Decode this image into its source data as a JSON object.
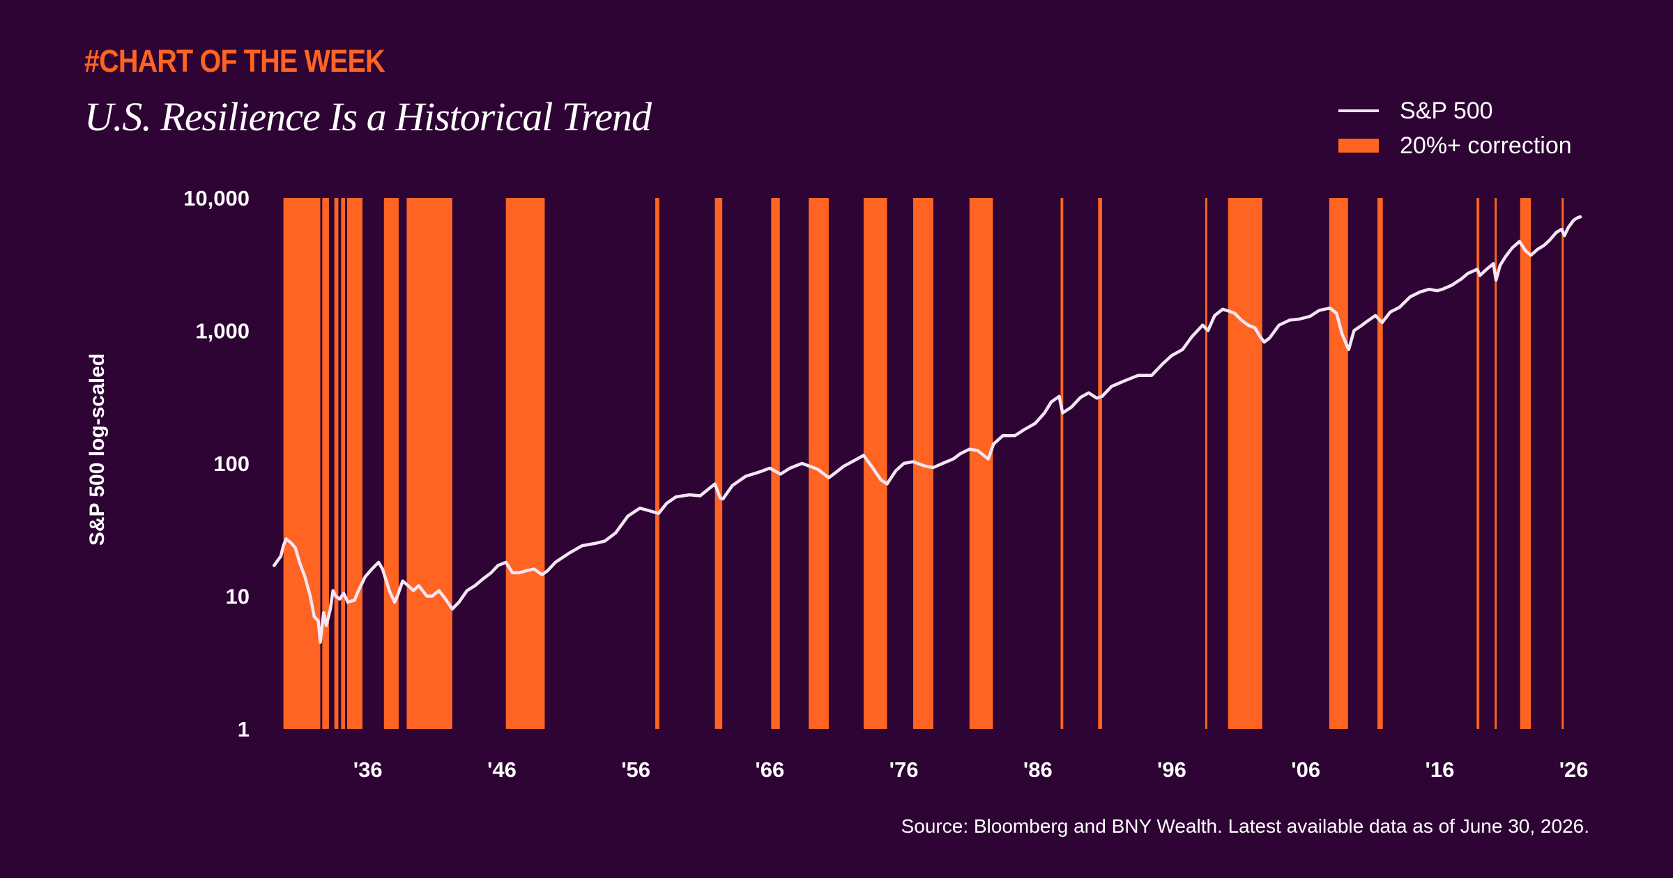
{
  "header": {
    "kicker": "#CHART OF THE WEEK",
    "title": "U.S. Resilience Is a Historical Trend"
  },
  "legend": {
    "line_label": "S&P 500",
    "box_label": "20%+ correction"
  },
  "footer": {
    "source": "Source: Bloomberg and BNY Wealth. Latest available data as of June 30, 2026."
  },
  "colors": {
    "background": "#2d0433",
    "line": "#f4e6f5",
    "correction": "#ff6422",
    "accent": "#ff6422"
  },
  "chart_data": {
    "type": "line",
    "title": "U.S. Resilience Is a Historical Trend",
    "ylabel": "S&P 500 log-scaled",
    "xlabel": "",
    "y_scale": "log",
    "ylim": [
      1,
      10000
    ],
    "xlim": [
      1929.2,
      2026.8
    ],
    "y_ticks": [
      1,
      10,
      100,
      1000,
      10000
    ],
    "y_tick_labels": [
      "1",
      "10",
      "100",
      "1,000",
      "10,000"
    ],
    "x_ticks": [
      1936,
      1946,
      1956,
      1966,
      1976,
      1986,
      1996,
      2006,
      2016,
      2026
    ],
    "x_tick_labels": [
      "'36",
      "'46",
      "'56",
      "'66",
      "'76",
      "'86",
      "'96",
      "'06",
      "'16",
      "'26"
    ],
    "grid": false,
    "legend_position": "top-right",
    "series": [
      {
        "name": "S&P 500",
        "x": [
          1929.0,
          1929.5,
          1929.7,
          1929.9,
          1930.3,
          1930.6,
          1930.9,
          1931.3,
          1931.7,
          1932.0,
          1932.3,
          1932.45,
          1932.7,
          1932.9,
          1933.2,
          1933.4,
          1933.6,
          1933.9,
          1934.2,
          1934.5,
          1934.8,
          1935.0,
          1935.3,
          1935.8,
          1936.3,
          1936.8,
          1937.1,
          1937.6,
          1938.0,
          1938.2,
          1938.6,
          1939.0,
          1939.4,
          1939.8,
          1940.4,
          1940.8,
          1941.3,
          1941.8,
          1942.3,
          1942.8,
          1943.4,
          1944.0,
          1944.6,
          1945.2,
          1945.7,
          1946.3,
          1946.8,
          1947.3,
          1947.8,
          1948.4,
          1949.0,
          1949.4,
          1950.0,
          1951.0,
          1952.0,
          1953.0,
          1953.7,
          1954.5,
          1955.4,
          1956.3,
          1957.0,
          1957.7,
          1958.3,
          1959.0,
          1960.0,
          1960.8,
          1961.9,
          1962.3,
          1962.5,
          1963.2,
          1964.2,
          1965.2,
          1966.0,
          1966.8,
          1967.5,
          1968.4,
          1969.0,
          1969.6,
          1970.4,
          1970.9,
          1971.5,
          1972.3,
          1973.0,
          1973.6,
          1974.3,
          1974.75,
          1975.4,
          1976.0,
          1976.7,
          1977.5,
          1978.2,
          1978.9,
          1979.7,
          1980.2,
          1980.9,
          1981.5,
          1982.3,
          1982.7,
          1983.4,
          1984.3,
          1985.0,
          1985.8,
          1986.5,
          1987.0,
          1987.6,
          1987.85,
          1988.5,
          1989.2,
          1989.8,
          1990.4,
          1990.8,
          1991.5,
          1992.5,
          1993.5,
          1994.5,
          1995.3,
          1996.0,
          1996.8,
          1997.5,
          1998.3,
          1998.7,
          1999.2,
          1999.8,
          2000.3,
          2000.7,
          2001.2,
          2001.7,
          2002.2,
          2002.6,
          2002.9,
          2003.3,
          2004.0,
          2004.8,
          2005.5,
          2006.3,
          2007.0,
          2007.8,
          2008.3,
          2008.7,
          2009.0,
          2009.2,
          2009.6,
          2010.2,
          2010.6,
          2011.2,
          2011.7,
          2012.3,
          2013.0,
          2013.8,
          2014.5,
          2015.2,
          2015.8,
          2016.2,
          2016.9,
          2017.6,
          2018.1,
          2018.8,
          2019.0,
          2019.5,
          2020.0,
          2020.2,
          2020.5,
          2020.9,
          2021.4,
          2021.95,
          2022.4,
          2022.8,
          2023.3,
          2023.8,
          2024.2,
          2024.7,
          2025.1,
          2025.3,
          2025.6,
          2026.0,
          2026.3,
          2026.5
        ],
        "values": [
          17,
          20,
          24,
          27,
          25,
          23,
          18,
          14,
          10,
          7,
          6.5,
          4.5,
          7.5,
          6,
          8,
          11,
          10,
          9.5,
          10.5,
          9,
          9.2,
          9.3,
          11,
          14,
          16,
          18,
          16,
          11,
          9,
          10,
          13,
          12,
          11,
          12,
          10,
          10,
          11,
          9.5,
          8,
          9,
          11,
          12,
          13.5,
          15,
          17,
          18,
          15,
          15,
          15.5,
          16,
          14.5,
          15.5,
          18,
          21,
          24,
          25,
          26,
          30,
          40,
          46,
          44,
          42,
          50,
          56,
          58,
          57,
          70,
          55,
          54,
          68,
          80,
          86,
          92,
          83,
          92,
          100,
          95,
          90,
          78,
          85,
          95,
          105,
          115,
          95,
          75,
          70,
          88,
          100,
          103,
          96,
          93,
          100,
          108,
          118,
          128,
          125,
          108,
          140,
          162,
          162,
          180,
          200,
          240,
          290,
          320,
          240,
          265,
          315,
          340,
          310,
          320,
          380,
          420,
          460,
          460,
          560,
          650,
          720,
          900,
          1100,
          1000,
          1300,
          1450,
          1400,
          1350,
          1200,
          1100,
          1050,
          900,
          820,
          880,
          1100,
          1200,
          1220,
          1280,
          1420,
          1480,
          1350,
          950,
          800,
          720,
          1000,
          1100,
          1180,
          1300,
          1150,
          1380,
          1500,
          1800,
          1950,
          2050,
          2000,
          2050,
          2200,
          2450,
          2700,
          2900,
          2600,
          2900,
          3200,
          2400,
          3100,
          3600,
          4200,
          4700,
          4000,
          3700,
          4100,
          4400,
          4800,
          5500,
          5800,
          5200,
          6000,
          6800,
          7100,
          7200
        ]
      }
    ],
    "corrections": [
      {
        "start": 1929.7,
        "end": 1932.45
      },
      {
        "start": 1932.6,
        "end": 1933.1
      },
      {
        "start": 1933.5,
        "end": 1933.8
      },
      {
        "start": 1934.0,
        "end": 1934.3
      },
      {
        "start": 1934.45,
        "end": 1935.6
      },
      {
        "start": 1937.2,
        "end": 1938.3
      },
      {
        "start": 1938.9,
        "end": 1942.3
      },
      {
        "start": 1946.3,
        "end": 1949.2
      },
      {
        "start": 1957.45,
        "end": 1957.75
      },
      {
        "start": 1961.9,
        "end": 1962.45
      },
      {
        "start": 1966.1,
        "end": 1966.75
      },
      {
        "start": 1968.9,
        "end": 1970.4
      },
      {
        "start": 1973.0,
        "end": 1974.75
      },
      {
        "start": 1976.7,
        "end": 1978.2
      },
      {
        "start": 1980.9,
        "end": 1982.65
      },
      {
        "start": 1987.7,
        "end": 1987.9
      },
      {
        "start": 1990.5,
        "end": 1990.8
      },
      {
        "start": 1998.5,
        "end": 1998.65
      },
      {
        "start": 2000.2,
        "end": 2002.75
      },
      {
        "start": 2007.75,
        "end": 2009.15
      },
      {
        "start": 2011.35,
        "end": 2011.75
      },
      {
        "start": 2018.75,
        "end": 2018.95
      },
      {
        "start": 2020.1,
        "end": 2020.25
      },
      {
        "start": 2022.0,
        "end": 2022.8
      },
      {
        "start": 2025.1,
        "end": 2025.25
      }
    ]
  }
}
